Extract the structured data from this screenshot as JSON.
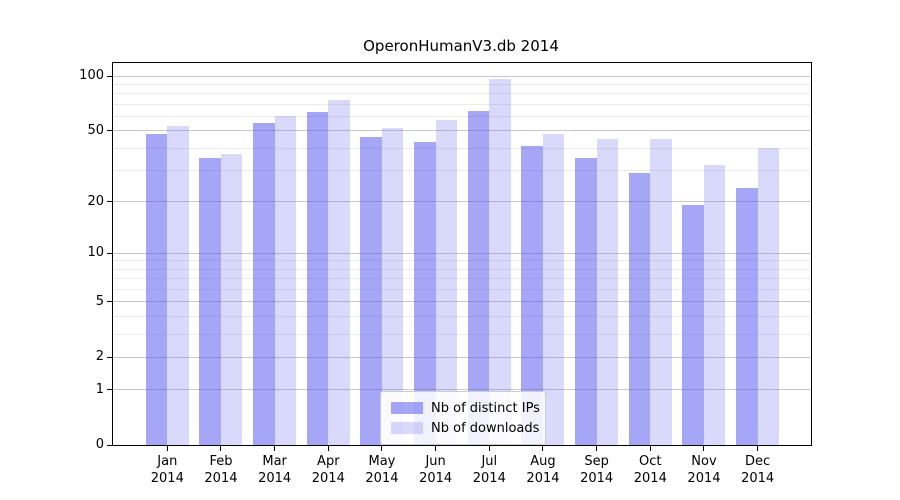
{
  "title": "OperonHumanV3.db 2014",
  "chart_data": {
    "type": "bar",
    "title": "OperonHumanV3.db 2014",
    "categories": [
      "Jan",
      "Feb",
      "Mar",
      "Apr",
      "May",
      "Jun",
      "Jul",
      "Aug",
      "Sep",
      "Oct",
      "Nov",
      "Dec"
    ],
    "x_year_label": "2014",
    "series": [
      {
        "name": "Nb of distinct IPs",
        "color": "#5050ee",
        "opacity": 0.51,
        "apparent_color": "#a6a6f7",
        "values": [
          48,
          35,
          55,
          63,
          46,
          43,
          64,
          41,
          35,
          29,
          19,
          24
        ]
      },
      {
        "name": "Nb of downloads",
        "color": "#6868ee",
        "opacity": 0.25,
        "apparent_color": "#d9d9fa",
        "values": [
          53,
          37,
          60,
          74,
          52,
          57,
          96,
          48,
          45,
          45,
          32,
          40
        ]
      }
    ],
    "yscale": "log10(value+1)",
    "ylim": [
      0,
      118
    ],
    "y_ticks": [
      {
        "label": "100",
        "value": 100
      },
      {
        "label": "50",
        "value": 50
      },
      {
        "label": "20",
        "value": 20
      },
      {
        "label": "10",
        "value": 10
      },
      {
        "label": "5",
        "value": 5
      },
      {
        "label": "2",
        "value": 2
      },
      {
        "label": "1",
        "value": 1
      },
      {
        "label": "0",
        "value": 0
      }
    ],
    "y_minor_gridlines": [
      3,
      4,
      6,
      7,
      8,
      9,
      30,
      40,
      60,
      70,
      80,
      90
    ],
    "grid": true,
    "grid_major_color": "#c8c8c8",
    "grid_minor_color": "#ebebeb",
    "legend": {
      "position": "inside-bottom-center",
      "entries": [
        "Nb of distinct IPs",
        "Nb of downloads"
      ]
    }
  }
}
